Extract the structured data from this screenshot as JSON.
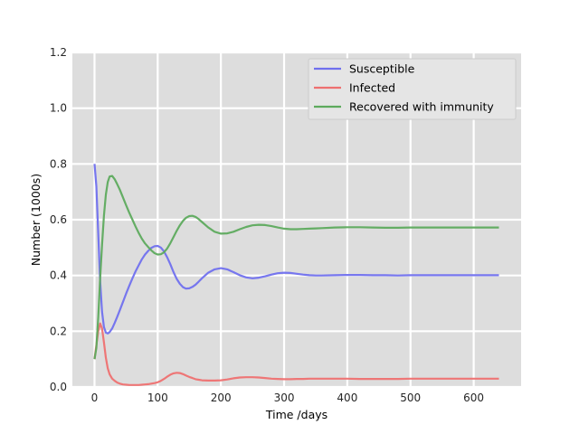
{
  "chart_data": {
    "type": "line",
    "title": "",
    "xlabel": "Time /days",
    "ylabel": "Number (1000s)",
    "xlim": [
      -35,
      675
    ],
    "ylim": [
      0,
      1.2
    ],
    "xticks": [
      0,
      100,
      200,
      300,
      400,
      500,
      600
    ],
    "yticks": [
      0.0,
      0.2,
      0.4,
      0.6,
      0.8,
      1.0,
      1.2
    ],
    "xtick_labels": [
      "0",
      "100",
      "200",
      "300",
      "400",
      "500",
      "600"
    ],
    "ytick_labels": [
      "0.0",
      "0.2",
      "0.4",
      "0.6",
      "0.8",
      "1.0",
      "1.2"
    ],
    "grid": true,
    "background": "#dddddd",
    "grid_color": "#ffffff",
    "legend_position": "top-right",
    "series": [
      {
        "name": "Susceptible",
        "color": "#7070ee",
        "x": [
          0,
          3,
          6,
          9,
          12,
          15,
          18,
          21,
          24,
          28,
          32,
          36,
          40,
          45,
          50,
          55,
          60,
          65,
          70,
          75,
          80,
          85,
          90,
          95,
          100,
          105,
          110,
          115,
          120,
          125,
          130,
          135,
          140,
          145,
          150,
          155,
          160,
          165,
          170,
          180,
          190,
          200,
          210,
          220,
          230,
          240,
          250,
          260,
          270,
          280,
          290,
          300,
          310,
          320,
          330,
          340,
          350,
          360,
          380,
          400,
          420,
          440,
          460,
          480,
          500,
          520,
          540,
          560,
          580,
          600,
          620,
          640
        ],
        "values": [
          0.8,
          0.72,
          0.55,
          0.38,
          0.27,
          0.215,
          0.195,
          0.192,
          0.197,
          0.21,
          0.23,
          0.252,
          0.275,
          0.305,
          0.335,
          0.363,
          0.39,
          0.415,
          0.437,
          0.458,
          0.475,
          0.488,
          0.499,
          0.505,
          0.506,
          0.5,
          0.486,
          0.465,
          0.44,
          0.412,
          0.388,
          0.37,
          0.358,
          0.353,
          0.354,
          0.359,
          0.367,
          0.378,
          0.39,
          0.41,
          0.422,
          0.426,
          0.422,
          0.412,
          0.401,
          0.393,
          0.39,
          0.392,
          0.397,
          0.403,
          0.408,
          0.41,
          0.409,
          0.406,
          0.403,
          0.401,
          0.4,
          0.4,
          0.401,
          0.402,
          0.402,
          0.401,
          0.401,
          0.4,
          0.401,
          0.401,
          0.401,
          0.401,
          0.401,
          0.401,
          0.401,
          0.401
        ]
      },
      {
        "name": "Infected",
        "color": "#ee7070",
        "x": [
          0,
          3,
          6,
          9,
          12,
          15,
          18,
          21,
          24,
          28,
          32,
          36,
          40,
          45,
          50,
          55,
          60,
          65,
          70,
          75,
          80,
          85,
          90,
          95,
          100,
          105,
          110,
          115,
          120,
          125,
          130,
          135,
          140,
          145,
          150,
          155,
          160,
          165,
          170,
          180,
          190,
          200,
          210,
          220,
          230,
          240,
          250,
          260,
          270,
          280,
          290,
          300,
          310,
          320,
          330,
          340,
          350,
          360,
          380,
          400,
          420,
          440,
          460,
          480,
          500,
          520,
          540,
          560,
          580,
          600,
          620,
          640
        ],
        "values": [
          0.1,
          0.15,
          0.2,
          0.228,
          0.21,
          0.16,
          0.105,
          0.067,
          0.045,
          0.03,
          0.022,
          0.016,
          0.012,
          0.009,
          0.008,
          0.007,
          0.007,
          0.007,
          0.007,
          0.008,
          0.009,
          0.01,
          0.012,
          0.014,
          0.017,
          0.022,
          0.029,
          0.037,
          0.044,
          0.049,
          0.051,
          0.05,
          0.046,
          0.041,
          0.036,
          0.032,
          0.028,
          0.026,
          0.024,
          0.023,
          0.023,
          0.024,
          0.027,
          0.031,
          0.034,
          0.035,
          0.035,
          0.034,
          0.032,
          0.03,
          0.029,
          0.028,
          0.028,
          0.029,
          0.029,
          0.03,
          0.03,
          0.03,
          0.03,
          0.03,
          0.029,
          0.029,
          0.029,
          0.029,
          0.03,
          0.03,
          0.03,
          0.03,
          0.03,
          0.03,
          0.03,
          0.03
        ]
      },
      {
        "name": "Recovered with immunity",
        "color": "#5daa5d",
        "x": [
          0,
          3,
          6,
          9,
          12,
          15,
          18,
          21,
          24,
          28,
          32,
          36,
          40,
          45,
          50,
          55,
          60,
          65,
          70,
          75,
          80,
          85,
          90,
          95,
          100,
          105,
          110,
          115,
          120,
          125,
          130,
          135,
          140,
          145,
          150,
          155,
          160,
          165,
          170,
          180,
          190,
          200,
          210,
          220,
          230,
          240,
          250,
          260,
          270,
          280,
          290,
          300,
          310,
          320,
          330,
          340,
          350,
          360,
          380,
          400,
          420,
          440,
          460,
          480,
          500,
          520,
          540,
          560,
          580,
          600,
          620,
          640
        ],
        "values": [
          0.1,
          0.14,
          0.25,
          0.39,
          0.51,
          0.615,
          0.69,
          0.735,
          0.755,
          0.757,
          0.745,
          0.727,
          0.708,
          0.68,
          0.652,
          0.625,
          0.6,
          0.575,
          0.552,
          0.532,
          0.515,
          0.502,
          0.49,
          0.48,
          0.475,
          0.476,
          0.483,
          0.497,
          0.516,
          0.538,
          0.56,
          0.58,
          0.596,
          0.607,
          0.613,
          0.614,
          0.61,
          0.602,
          0.592,
          0.572,
          0.557,
          0.55,
          0.551,
          0.557,
          0.566,
          0.574,
          0.58,
          0.582,
          0.581,
          0.577,
          0.572,
          0.568,
          0.566,
          0.566,
          0.567,
          0.568,
          0.569,
          0.57,
          0.572,
          0.573,
          0.573,
          0.572,
          0.571,
          0.571,
          0.572,
          0.572,
          0.572,
          0.572,
          0.572,
          0.572,
          0.572,
          0.572
        ]
      }
    ]
  }
}
